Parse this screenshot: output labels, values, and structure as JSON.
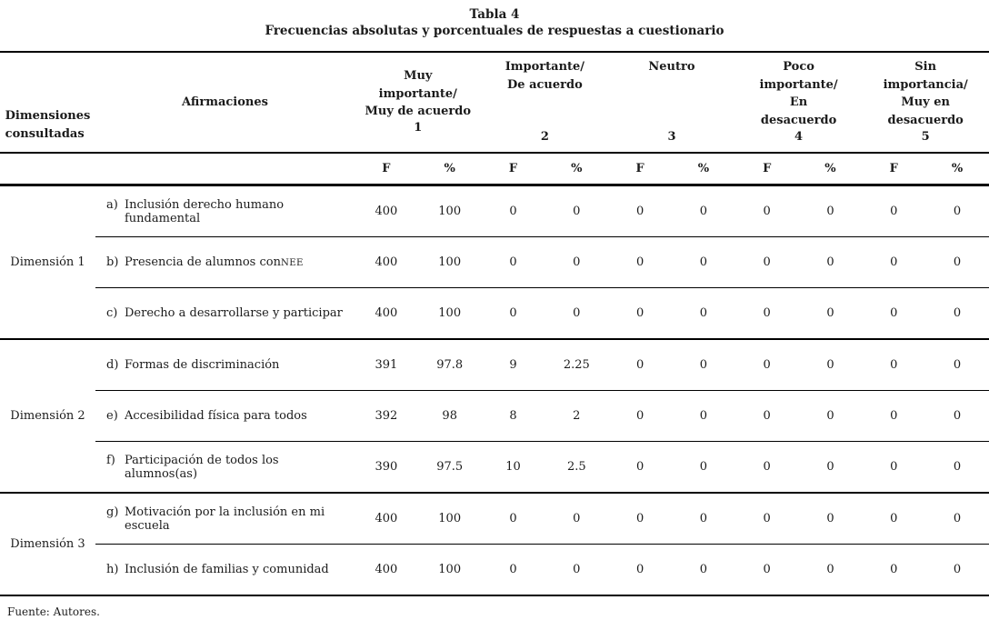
{
  "title": "Tabla 4",
  "subtitle": "Frecuencias absolutas y porcentuales de respuestas a cuestionario",
  "header": {
    "dimensions_label": "Dimensiones\nconsultadas",
    "affirmations_label": "Afirmaciones",
    "scales": [
      {
        "label": "Muy\nimportante/\nMuy de acuerdo",
        "number": "1"
      },
      {
        "label": "Importante/\nDe acuerdo",
        "number": "2"
      },
      {
        "label": "Neutro",
        "number": "3"
      },
      {
        "label": "Poco\nimportante/\nEn\ndesacuerdo",
        "number": "4"
      },
      {
        "label": "Sin\nimportancia/\nMuy en\ndesacuerdo",
        "number": "5"
      }
    ],
    "freq_label": "F",
    "pct_label": "%"
  },
  "sections": [
    {
      "dimension": "Dimensión 1",
      "rows": [
        {
          "letter": "a)",
          "text": "Inclusión derecho humano fundamental",
          "values": [
            "400",
            "100",
            "0",
            "0",
            "0",
            "0",
            "0",
            "0",
            "0",
            "0"
          ]
        },
        {
          "letter": "b)",
          "text": "Presencia de alumnos con ",
          "suffix": "NEE",
          "values": [
            "400",
            "100",
            "0",
            "0",
            "0",
            "0",
            "0",
            "0",
            "0",
            "0"
          ]
        },
        {
          "letter": "c)",
          "text": "Derecho a desarrollarse y participar",
          "values": [
            "400",
            "100",
            "0",
            "0",
            "0",
            "0",
            "0",
            "0",
            "0",
            "0"
          ]
        }
      ]
    },
    {
      "dimension": "Dimensión 2",
      "rows": [
        {
          "letter": "d)",
          "text": "Formas de discriminación",
          "values": [
            "391",
            "97.8",
            "9",
            "2.25",
            "0",
            "0",
            "0",
            "0",
            "0",
            "0"
          ]
        },
        {
          "letter": "e)",
          "text": "Accesibilidad física para todos",
          "values": [
            "392",
            "98",
            "8",
            "2",
            "0",
            "0",
            "0",
            "0",
            "0",
            "0"
          ]
        },
        {
          "letter": "f)",
          "text": "Participación de todos los alumnos(as)",
          "values": [
            "390",
            "97.5",
            "10",
            "2.5",
            "0",
            "0",
            "0",
            "0",
            "0",
            "0"
          ]
        }
      ]
    },
    {
      "dimension": "Dimensión 3",
      "rows": [
        {
          "letter": "g)",
          "text": "Motivación por la inclusión en mi escuela",
          "values": [
            "400",
            "100",
            "0",
            "0",
            "0",
            "0",
            "0",
            "0",
            "0",
            "0"
          ]
        },
        {
          "letter": "h)",
          "text": "Inclusión de familias y comunidad",
          "values": [
            "400",
            "100",
            "0",
            "0",
            "0",
            "0",
            "0",
            "0",
            "0",
            "0"
          ]
        }
      ]
    }
  ],
  "footer": "Fuente: Autores."
}
